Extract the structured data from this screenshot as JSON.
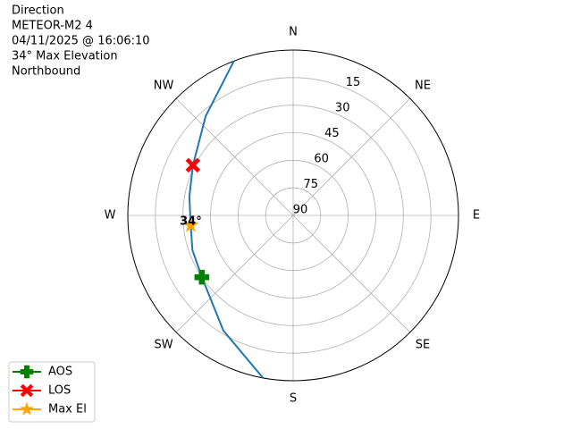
{
  "chart_data": {
    "type": "polar",
    "title_lines": [
      "Direction",
      "METEOR-M2 4",
      "04/11/2025 @ 16:06:10",
      "34° Max Elevation",
      "Northbound"
    ],
    "rlim": [
      90,
      0
    ],
    "rticks": [
      15,
      30,
      45,
      60,
      75,
      90
    ],
    "thetaticks": [
      {
        "value": 0,
        "label": "N"
      },
      {
        "value": 45,
        "label": "NE"
      },
      {
        "value": 90,
        "label": "E"
      },
      {
        "value": 135,
        "label": "SE"
      },
      {
        "value": 180,
        "label": "S"
      },
      {
        "value": 225,
        "label": "SW"
      },
      {
        "value": 270,
        "label": "W"
      },
      {
        "value": 315,
        "label": "NW"
      }
    ],
    "grid": true,
    "track": {
      "color": "#1f77b4",
      "azimuth": [
        190.5,
        211.2,
        235.9,
        251,
        264.5,
        280.3,
        296.6,
        318.6,
        339
      ],
      "elevation": [
        0,
        16.7,
        30,
        32,
        34,
        32.6,
        29,
        18,
        0
      ]
    },
    "series": [
      {
        "name": "AOS",
        "color": "#008000",
        "marker": "plus",
        "azimuth": [
          235.9
        ],
        "elevation": [
          30
        ]
      },
      {
        "name": "LOS",
        "color": "#ff0000",
        "marker": "x",
        "azimuth": [
          296.6
        ],
        "elevation": [
          29
        ]
      },
      {
        "name": "Max El",
        "color": "#ffa500",
        "marker": "star",
        "azimuth": [
          264.5
        ],
        "elevation": [
          34
        ]
      }
    ],
    "annotation": "34°",
    "legend": "lower left"
  }
}
